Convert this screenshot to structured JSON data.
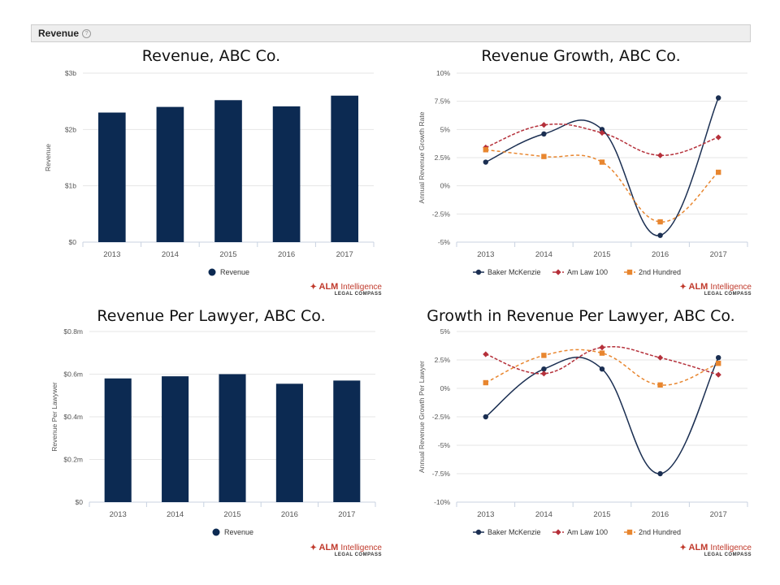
{
  "header": {
    "title": "Revenue",
    "help_icon": "question-circle-icon"
  },
  "brand": {
    "name": "ALM",
    "name_suffix": "Intelligence",
    "sub": "LEGAL COMPASS",
    "color": "#c0392b"
  },
  "colors": {
    "bar": "#0c2a52",
    "baker": "#1b2f52",
    "amlaw": "#b5303a",
    "second": "#e8862f",
    "grid": "#e6e6e6"
  },
  "chart_data": [
    {
      "type": "bar",
      "title": "Revenue, ABC Co.",
      "ylabel": "Revenue",
      "categories": [
        "2013",
        "2014",
        "2015",
        "2016",
        "2017"
      ],
      "series": [
        {
          "name": "Revenue",
          "values": [
            2.3,
            2.4,
            2.52,
            2.41,
            2.6
          ]
        }
      ],
      "ylim": [
        0,
        3
      ],
      "yticks": [
        0,
        1,
        2,
        3
      ],
      "ytick_labels": [
        "$0",
        "$1b",
        "$2b",
        "$3b"
      ],
      "legend": "bottom-center",
      "grid": true
    },
    {
      "type": "line",
      "title": "Revenue Growth, ABC Co.",
      "ylabel": "Annual Revenue Growth Rate",
      "categories": [
        "2013",
        "2014",
        "2015",
        "2016",
        "2017"
      ],
      "series": [
        {
          "name": "Baker McKenzie",
          "values": [
            2.1,
            4.6,
            5.0,
            -4.4,
            7.8
          ]
        },
        {
          "name": "Am Law 100",
          "values": [
            3.4,
            5.4,
            4.7,
            2.7,
            4.3
          ]
        },
        {
          "name": "2nd Hundred",
          "values": [
            3.2,
            2.6,
            2.1,
            -3.2,
            1.2
          ]
        }
      ],
      "ylim": [
        -5,
        10
      ],
      "yticks": [
        -5,
        -2.5,
        0,
        2.5,
        5,
        7.5,
        10
      ],
      "ytick_labels": [
        "-5%",
        "-2.5%",
        "0%",
        "2.5%",
        "5%",
        "7.5%",
        "10%"
      ],
      "legend": "bottom-left",
      "grid": true
    },
    {
      "type": "bar",
      "title": "Revenue Per Lawyer, ABC Co.",
      "ylabel": "Revenue Per Lawywer",
      "categories": [
        "2013",
        "2014",
        "2015",
        "2016",
        "2017"
      ],
      "series": [
        {
          "name": "Revenue",
          "values": [
            0.58,
            0.59,
            0.6,
            0.555,
            0.57
          ]
        }
      ],
      "ylim": [
        0,
        0.8
      ],
      "yticks": [
        0,
        0.2,
        0.4,
        0.6,
        0.8
      ],
      "ytick_labels": [
        "$0",
        "$0.2m",
        "$0.4m",
        "$0.6m",
        "$0.8m"
      ],
      "legend": "bottom-center",
      "grid": true
    },
    {
      "type": "line",
      "title": "Growth in Revenue Per Lawyer, ABC Co.",
      "ylabel": "Annual Revenue Growth Per Lawyer",
      "categories": [
        "2013",
        "2014",
        "2015",
        "2016",
        "2017"
      ],
      "series": [
        {
          "name": "Baker McKenzie",
          "values": [
            -2.5,
            1.7,
            1.7,
            -7.5,
            2.7
          ]
        },
        {
          "name": "Am Law 100",
          "values": [
            3.0,
            1.3,
            3.6,
            2.7,
            1.2
          ]
        },
        {
          "name": "2nd Hundred",
          "values": [
            0.5,
            2.9,
            3.1,
            0.3,
            2.2
          ]
        }
      ],
      "ylim": [
        -10,
        5
      ],
      "yticks": [
        -10,
        -7.5,
        -5,
        -2.5,
        0,
        2.5,
        5
      ],
      "ytick_labels": [
        "-10%",
        "-7.5%",
        "-5%",
        "-2.5%",
        "0%",
        "2.5%",
        "5%"
      ],
      "legend": "bottom-left",
      "grid": true
    }
  ]
}
